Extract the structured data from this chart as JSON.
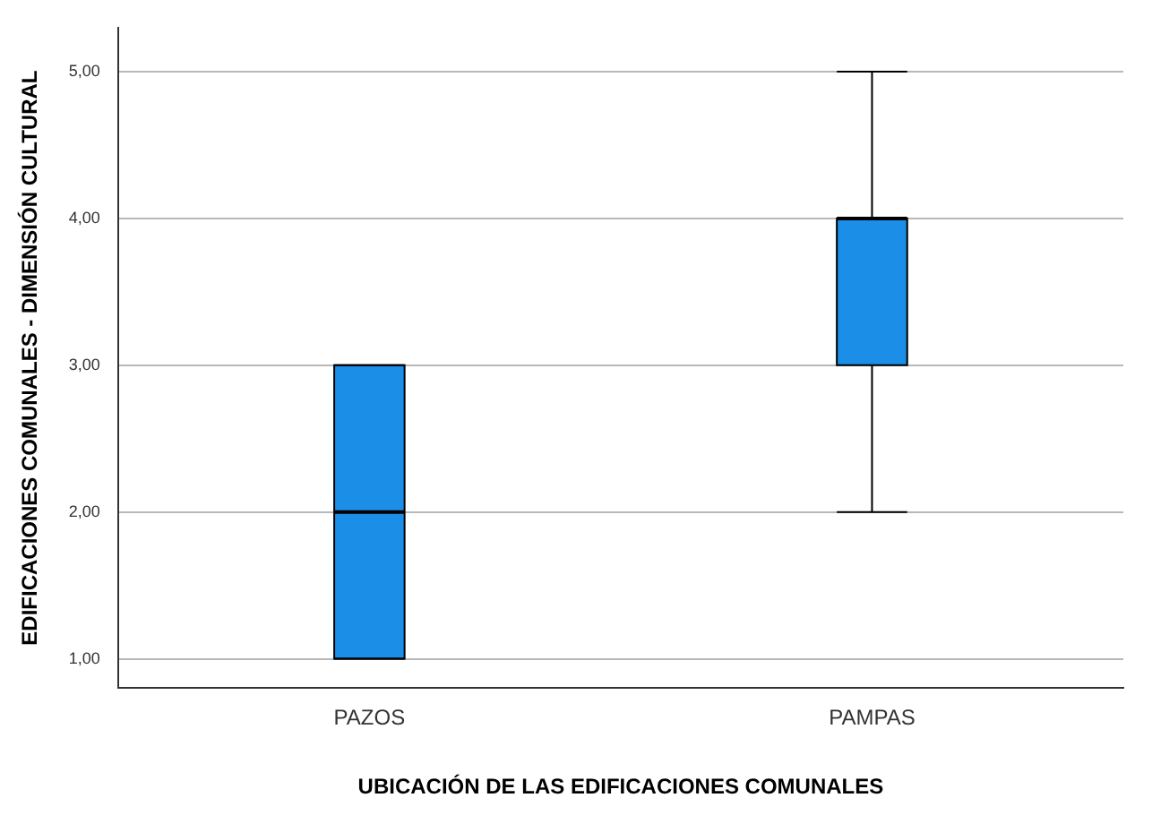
{
  "chart_data": {
    "type": "box",
    "xlabel": "UBICACIÓN DE LAS EDIFICACIONES COMUNALES",
    "ylabel": "EDIFICACIONES COMUNALES - DIMENSIÓN CULTURAL",
    "categories": [
      "PAZOS",
      "PAMPAS"
    ],
    "color": "#1b8fe8",
    "boxes": [
      {
        "low": 1,
        "q1": 1,
        "median": 2,
        "q3": 3,
        "high": 3
      },
      {
        "low": 2,
        "q1": 3,
        "median": 4,
        "q3": 4,
        "high": 5
      }
    ],
    "ylim": [
      0.8,
      5.3
    ],
    "yticks": [
      {
        "value": 1,
        "label": "1,00"
      },
      {
        "value": 2,
        "label": "2,00"
      },
      {
        "value": 3,
        "label": "3,00"
      },
      {
        "value": 4,
        "label": "4,00"
      },
      {
        "value": 5,
        "label": "5,00"
      }
    ],
    "grid": "y"
  }
}
